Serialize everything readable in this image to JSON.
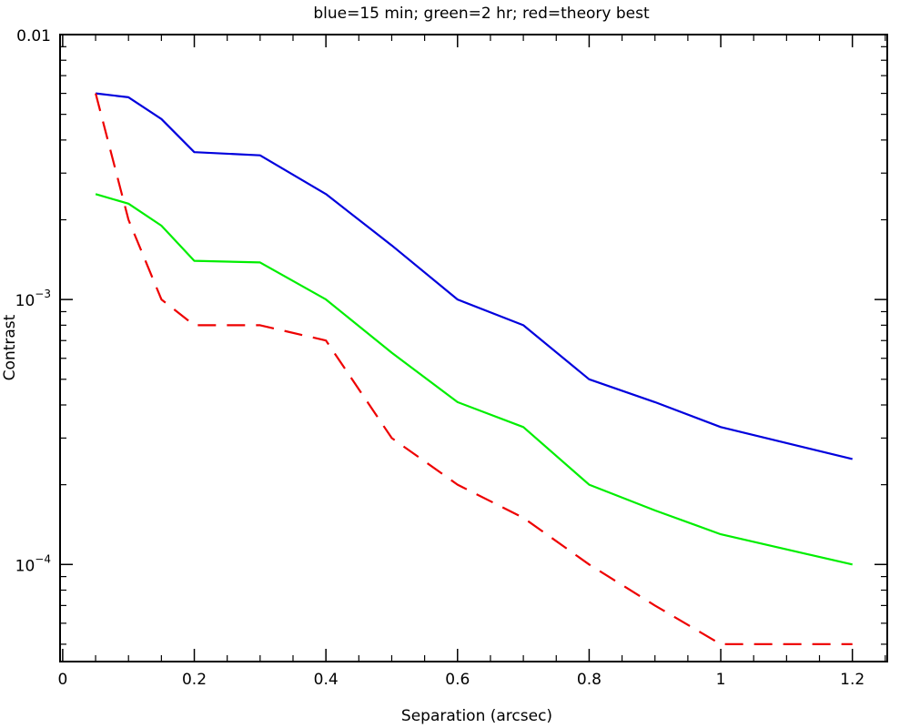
{
  "chart_data": {
    "type": "line",
    "title": "blue=15 min; green=2 hr; red=theory best",
    "xlabel": "Separation (arcsec)",
    "ylabel": "Contrast",
    "xlim": [
      -0.004,
      1.253
    ],
    "ylim": [
      4.3e-05,
      0.01
    ],
    "yscale": "log",
    "grid": false,
    "x_ticks": [
      {
        "value": 0,
        "label": "0"
      },
      {
        "value": 0.2,
        "label": "0.2"
      },
      {
        "value": 0.4,
        "label": "0.4"
      },
      {
        "value": 0.6,
        "label": "0.6"
      },
      {
        "value": 0.8,
        "label": "0.8"
      },
      {
        "value": 1,
        "label": "1"
      },
      {
        "value": 1.2,
        "label": "1.2"
      }
    ],
    "y_ticks": [
      {
        "value": 0.01,
        "base": "0.01",
        "exp": ""
      },
      {
        "value": 0.001,
        "base": "10",
        "exp": "−3"
      },
      {
        "value": 0.0001,
        "base": "10",
        "exp": "−4"
      }
    ],
    "series": [
      {
        "color": "#0000dd",
        "dash": "solid",
        "x": [
          0.05,
          0.1,
          0.15,
          0.2,
          0.3,
          0.4,
          0.5,
          0.6,
          0.7,
          0.8,
          0.9,
          1.0,
          1.2
        ],
        "y": [
          0.006,
          0.0058,
          0.0048,
          0.0036,
          0.0035,
          0.0025,
          0.0016,
          0.001,
          0.0008,
          0.0005,
          0.00041,
          0.00033,
          0.00025
        ]
      },
      {
        "color": "#00ee00",
        "dash": "solid",
        "x": [
          0.05,
          0.1,
          0.15,
          0.2,
          0.3,
          0.4,
          0.5,
          0.6,
          0.7,
          0.8,
          0.9,
          1.0,
          1.2
        ],
        "y": [
          0.0025,
          0.0023,
          0.0019,
          0.0014,
          0.00138,
          0.001,
          0.00063,
          0.00041,
          0.00033,
          0.0002,
          0.00016,
          0.00013,
          0.0001
        ]
      },
      {
        "color": "#ee0000",
        "dash": "dashed",
        "x": [
          0.05,
          0.1,
          0.15,
          0.2,
          0.3,
          0.4,
          0.5,
          0.6,
          0.7,
          0.8,
          0.9,
          1.0,
          1.2
        ],
        "y": [
          0.006,
          0.002,
          0.001,
          0.0008,
          0.0008,
          0.0007,
          0.0003,
          0.0002,
          0.00015,
          0.0001,
          7e-05,
          5e-05,
          5e-05
        ]
      }
    ]
  }
}
